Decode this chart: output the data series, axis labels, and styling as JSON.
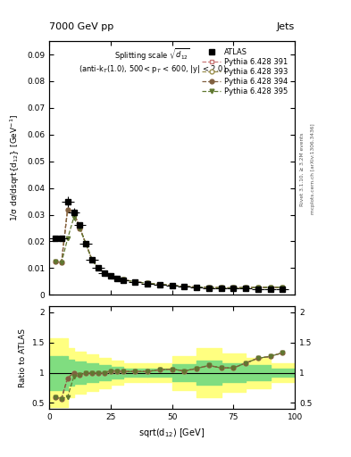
{
  "title_top": "7000 GeV pp",
  "title_right": "Jets",
  "right_label1": "Rivet 3.1.10, ≥ 3.2M events",
  "right_label2": "mcplots.cern.ch [arXiv:1306.3436]",
  "ylabel_main": "1/σ dσ/dsqrt{d_{12}} [GeV⁻¹]",
  "ylabel_ratio": "Ratio to ATLAS",
  "xlabel": "sqrt(d_{12}) [GeV]",
  "ylim_main": [
    0.0,
    0.095
  ],
  "ylim_ratio": [
    0.4,
    2.1
  ],
  "yticks_main": [
    0.0,
    0.01,
    0.02,
    0.03,
    0.04,
    0.05,
    0.06,
    0.07,
    0.08,
    0.09
  ],
  "yticks_ratio": [
    0.5,
    1.0,
    1.5,
    2.0
  ],
  "xlim": [
    0,
    100
  ],
  "xticks": [
    0,
    25,
    50,
    75,
    100
  ],
  "x_pts": [
    2.5,
    5,
    7.5,
    10,
    12.5,
    15,
    17.5,
    20,
    22.5,
    25,
    27.5,
    30,
    35,
    40,
    45,
    50,
    55,
    60,
    65,
    70,
    75,
    80,
    85,
    90,
    95
  ],
  "x_half_widths": [
    2.5,
    2.5,
    2.5,
    2.5,
    2.5,
    2.5,
    2.5,
    2.5,
    2.5,
    2.5,
    2.5,
    2.5,
    2.5,
    2.5,
    2.5,
    2.5,
    2.5,
    2.5,
    2.5,
    2.5,
    2.5,
    2.5,
    2.5,
    2.5,
    2.5
  ],
  "atlas_y": [
    0.021,
    0.021,
    0.035,
    0.031,
    0.026,
    0.019,
    0.013,
    0.01,
    0.0082,
    0.007,
    0.006,
    0.0055,
    0.0048,
    0.0042,
    0.0037,
    0.0033,
    0.003,
    0.0027,
    0.0025,
    0.0024,
    0.0024,
    0.0023,
    0.0022,
    0.0022,
    0.0021
  ],
  "atlas_err_y": [
    0.001,
    0.001,
    0.002,
    0.0015,
    0.0012,
    0.0008,
    0.0006,
    0.0005,
    0.0004,
    0.0003,
    0.0003,
    0.0003,
    0.0002,
    0.0002,
    0.0002,
    0.0001,
    0.0001,
    0.0001,
    0.0001,
    0.0001,
    0.0001,
    0.0001,
    0.0001,
    0.0001,
    0.0001
  ],
  "ratio_391": [
    0.6,
    0.57,
    0.91,
    1.0,
    0.96,
    1.0,
    1.0,
    1.0,
    1.0,
    1.03,
    1.03,
    1.02,
    1.02,
    1.02,
    1.05,
    1.06,
    1.03,
    1.07,
    1.12,
    1.08,
    1.08,
    1.16,
    1.24,
    1.27,
    1.33
  ],
  "ratio_393": [
    0.6,
    0.57,
    0.91,
    1.0,
    0.96,
    1.0,
    1.0,
    1.0,
    1.0,
    1.03,
    1.03,
    1.02,
    1.02,
    1.02,
    1.05,
    1.06,
    1.03,
    1.07,
    1.12,
    1.08,
    1.08,
    1.16,
    1.24,
    1.27,
    1.33
  ],
  "ratio_394": [
    0.6,
    0.57,
    0.91,
    1.0,
    0.96,
    1.0,
    1.0,
    1.0,
    1.0,
    1.03,
    1.03,
    1.02,
    1.02,
    1.02,
    1.05,
    1.06,
    1.03,
    1.07,
    1.12,
    1.08,
    1.08,
    1.16,
    1.24,
    1.27,
    1.33
  ],
  "ratio_395": [
    0.6,
    0.57,
    0.6,
    0.93,
    0.96,
    1.0,
    1.0,
    1.0,
    1.0,
    1.03,
    1.03,
    1.02,
    1.02,
    1.02,
    1.05,
    1.06,
    1.03,
    1.07,
    1.12,
    1.08,
    1.08,
    1.16,
    1.24,
    1.27,
    1.33
  ],
  "band_edges": [
    0,
    5,
    7.5,
    10,
    15,
    20,
    25,
    30,
    40,
    50,
    60,
    70,
    80,
    90,
    100
  ],
  "yel_lo": [
    0.43,
    0.43,
    0.6,
    0.65,
    0.7,
    0.75,
    0.8,
    0.85,
    0.85,
    0.72,
    0.6,
    0.68,
    0.75,
    0.85
  ],
  "yel_hi": [
    1.57,
    1.57,
    1.4,
    1.35,
    1.3,
    1.25,
    1.2,
    1.15,
    1.15,
    1.28,
    1.4,
    1.32,
    1.25,
    1.15
  ],
  "grn_lo": [
    0.72,
    0.72,
    0.78,
    0.82,
    0.85,
    0.87,
    0.9,
    0.93,
    0.93,
    0.86,
    0.8,
    0.84,
    0.87,
    0.93
  ],
  "grn_hi": [
    1.28,
    1.28,
    1.22,
    1.18,
    1.15,
    1.13,
    1.1,
    1.07,
    1.07,
    1.14,
    1.2,
    1.16,
    1.13,
    1.07
  ],
  "c391": "#c87878",
  "c393": "#9c9050",
  "c394": "#806040",
  "c395": "#607830",
  "band_yellow": "#ffff80",
  "band_green": "#80dd80"
}
